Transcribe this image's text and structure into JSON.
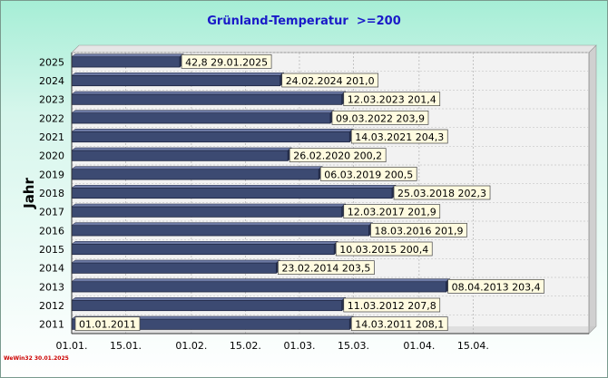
{
  "footer": {
    "note": "WeWin32  30.01.2025"
  },
  "chart_data": {
    "type": "bar",
    "orientation": "horizontal",
    "title": "Grünland-Temperatur  >=200",
    "ylabel": "Jahr",
    "xlabel": "",
    "x_axis": "day of year (from 01.01.)",
    "x_ticks": [
      "01.01.",
      "15.01.",
      "01.02.",
      "15.02.",
      "01.03.",
      "15.03.",
      "01.04.",
      "15.04."
    ],
    "x_tick_values": [
      0,
      14,
      31,
      45,
      59,
      73,
      90,
      104
    ],
    "xlim": [
      0,
      134
    ],
    "grid": true,
    "bar_color": "#3c4a72",
    "bars": [
      {
        "year": "2025",
        "date": "29.01.2025",
        "value": 42.8,
        "day": 28,
        "label": "42,8  29.01.2025"
      },
      {
        "year": "2024",
        "date": "24.02.2024",
        "value": 201.0,
        "day": 54,
        "label": "24.02.2024  201,0"
      },
      {
        "year": "2023",
        "date": "12.03.2023",
        "value": 201.4,
        "day": 70,
        "label": "12.03.2023  201,4"
      },
      {
        "year": "2022",
        "date": "09.03.2022",
        "value": 203.9,
        "day": 67,
        "label": "09.03.2022  203,9"
      },
      {
        "year": "2021",
        "date": "14.03.2021",
        "value": 204.3,
        "day": 72,
        "label": "14.03.2021  204,3"
      },
      {
        "year": "2020",
        "date": "26.02.2020",
        "value": 200.2,
        "day": 56,
        "label": "26.02.2020  200,2"
      },
      {
        "year": "2019",
        "date": "06.03.2019",
        "value": 200.5,
        "day": 64,
        "label": "06.03.2019  200,5"
      },
      {
        "year": "2018",
        "date": "25.03.2018",
        "value": 202.3,
        "day": 83,
        "label": "25.03.2018  202,3"
      },
      {
        "year": "2017",
        "date": "12.03.2017",
        "value": 201.9,
        "day": 70,
        "label": "12.03.2017  201,9"
      },
      {
        "year": "2016",
        "date": "18.03.2016",
        "value": 201.9,
        "day": 77,
        "label": "18.03.2016  201,9"
      },
      {
        "year": "2015",
        "date": "10.03.2015",
        "value": 200.4,
        "day": 68,
        "label": "10.03.2015  200,4"
      },
      {
        "year": "2014",
        "date": "23.02.2014",
        "value": 203.5,
        "day": 53,
        "label": "23.02.2014  203,5"
      },
      {
        "year": "2013",
        "date": "08.04.2013",
        "value": 203.4,
        "day": 97,
        "label": "08.04.2013  203,4"
      },
      {
        "year": "2012",
        "date": "11.03.2012",
        "value": 207.8,
        "day": 70,
        "label": "11.03.2012  207,8"
      },
      {
        "year": "2011",
        "date": "14.03.2011",
        "value": 208.1,
        "day": 72,
        "label": "14.03.2011  208,1",
        "start_label": "01.01.2011"
      }
    ]
  }
}
